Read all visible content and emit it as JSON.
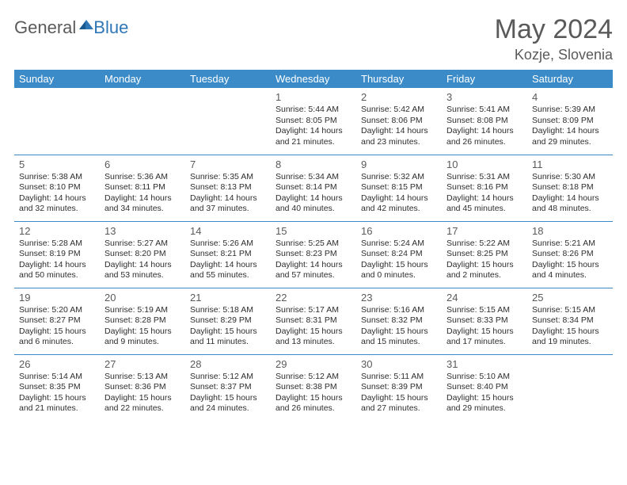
{
  "logo": {
    "part1": "General",
    "part2": "Blue"
  },
  "title": "May 2024",
  "location": "Kozje, Slovenia",
  "colors": {
    "header_bg": "#3b8bc9",
    "header_text": "#ffffff",
    "rule": "#3b8bc9",
    "daynum": "#5a5a5a",
    "body_text": "#2d2d2d",
    "title_text": "#5a5a5a",
    "logo_gray": "#5a5a5a",
    "logo_blue": "#2f77b5",
    "background": "#ffffff"
  },
  "day_labels": [
    "Sunday",
    "Monday",
    "Tuesday",
    "Wednesday",
    "Thursday",
    "Friday",
    "Saturday"
  ],
  "weeks": [
    [
      null,
      null,
      null,
      {
        "d": "1",
        "sr": "Sunrise: 5:44 AM",
        "ss": "Sunset: 8:05 PM",
        "dl1": "Daylight: 14 hours",
        "dl2": "and 21 minutes."
      },
      {
        "d": "2",
        "sr": "Sunrise: 5:42 AM",
        "ss": "Sunset: 8:06 PM",
        "dl1": "Daylight: 14 hours",
        "dl2": "and 23 minutes."
      },
      {
        "d": "3",
        "sr": "Sunrise: 5:41 AM",
        "ss": "Sunset: 8:08 PM",
        "dl1": "Daylight: 14 hours",
        "dl2": "and 26 minutes."
      },
      {
        "d": "4",
        "sr": "Sunrise: 5:39 AM",
        "ss": "Sunset: 8:09 PM",
        "dl1": "Daylight: 14 hours",
        "dl2": "and 29 minutes."
      }
    ],
    [
      {
        "d": "5",
        "sr": "Sunrise: 5:38 AM",
        "ss": "Sunset: 8:10 PM",
        "dl1": "Daylight: 14 hours",
        "dl2": "and 32 minutes."
      },
      {
        "d": "6",
        "sr": "Sunrise: 5:36 AM",
        "ss": "Sunset: 8:11 PM",
        "dl1": "Daylight: 14 hours",
        "dl2": "and 34 minutes."
      },
      {
        "d": "7",
        "sr": "Sunrise: 5:35 AM",
        "ss": "Sunset: 8:13 PM",
        "dl1": "Daylight: 14 hours",
        "dl2": "and 37 minutes."
      },
      {
        "d": "8",
        "sr": "Sunrise: 5:34 AM",
        "ss": "Sunset: 8:14 PM",
        "dl1": "Daylight: 14 hours",
        "dl2": "and 40 minutes."
      },
      {
        "d": "9",
        "sr": "Sunrise: 5:32 AM",
        "ss": "Sunset: 8:15 PM",
        "dl1": "Daylight: 14 hours",
        "dl2": "and 42 minutes."
      },
      {
        "d": "10",
        "sr": "Sunrise: 5:31 AM",
        "ss": "Sunset: 8:16 PM",
        "dl1": "Daylight: 14 hours",
        "dl2": "and 45 minutes."
      },
      {
        "d": "11",
        "sr": "Sunrise: 5:30 AM",
        "ss": "Sunset: 8:18 PM",
        "dl1": "Daylight: 14 hours",
        "dl2": "and 48 minutes."
      }
    ],
    [
      {
        "d": "12",
        "sr": "Sunrise: 5:28 AM",
        "ss": "Sunset: 8:19 PM",
        "dl1": "Daylight: 14 hours",
        "dl2": "and 50 minutes."
      },
      {
        "d": "13",
        "sr": "Sunrise: 5:27 AM",
        "ss": "Sunset: 8:20 PM",
        "dl1": "Daylight: 14 hours",
        "dl2": "and 53 minutes."
      },
      {
        "d": "14",
        "sr": "Sunrise: 5:26 AM",
        "ss": "Sunset: 8:21 PM",
        "dl1": "Daylight: 14 hours",
        "dl2": "and 55 minutes."
      },
      {
        "d": "15",
        "sr": "Sunrise: 5:25 AM",
        "ss": "Sunset: 8:23 PM",
        "dl1": "Daylight: 14 hours",
        "dl2": "and 57 minutes."
      },
      {
        "d": "16",
        "sr": "Sunrise: 5:24 AM",
        "ss": "Sunset: 8:24 PM",
        "dl1": "Daylight: 15 hours",
        "dl2": "and 0 minutes."
      },
      {
        "d": "17",
        "sr": "Sunrise: 5:22 AM",
        "ss": "Sunset: 8:25 PM",
        "dl1": "Daylight: 15 hours",
        "dl2": "and 2 minutes."
      },
      {
        "d": "18",
        "sr": "Sunrise: 5:21 AM",
        "ss": "Sunset: 8:26 PM",
        "dl1": "Daylight: 15 hours",
        "dl2": "and 4 minutes."
      }
    ],
    [
      {
        "d": "19",
        "sr": "Sunrise: 5:20 AM",
        "ss": "Sunset: 8:27 PM",
        "dl1": "Daylight: 15 hours",
        "dl2": "and 6 minutes."
      },
      {
        "d": "20",
        "sr": "Sunrise: 5:19 AM",
        "ss": "Sunset: 8:28 PM",
        "dl1": "Daylight: 15 hours",
        "dl2": "and 9 minutes."
      },
      {
        "d": "21",
        "sr": "Sunrise: 5:18 AM",
        "ss": "Sunset: 8:29 PM",
        "dl1": "Daylight: 15 hours",
        "dl2": "and 11 minutes."
      },
      {
        "d": "22",
        "sr": "Sunrise: 5:17 AM",
        "ss": "Sunset: 8:31 PM",
        "dl1": "Daylight: 15 hours",
        "dl2": "and 13 minutes."
      },
      {
        "d": "23",
        "sr": "Sunrise: 5:16 AM",
        "ss": "Sunset: 8:32 PM",
        "dl1": "Daylight: 15 hours",
        "dl2": "and 15 minutes."
      },
      {
        "d": "24",
        "sr": "Sunrise: 5:15 AM",
        "ss": "Sunset: 8:33 PM",
        "dl1": "Daylight: 15 hours",
        "dl2": "and 17 minutes."
      },
      {
        "d": "25",
        "sr": "Sunrise: 5:15 AM",
        "ss": "Sunset: 8:34 PM",
        "dl1": "Daylight: 15 hours",
        "dl2": "and 19 minutes."
      }
    ],
    [
      {
        "d": "26",
        "sr": "Sunrise: 5:14 AM",
        "ss": "Sunset: 8:35 PM",
        "dl1": "Daylight: 15 hours",
        "dl2": "and 21 minutes."
      },
      {
        "d": "27",
        "sr": "Sunrise: 5:13 AM",
        "ss": "Sunset: 8:36 PM",
        "dl1": "Daylight: 15 hours",
        "dl2": "and 22 minutes."
      },
      {
        "d": "28",
        "sr": "Sunrise: 5:12 AM",
        "ss": "Sunset: 8:37 PM",
        "dl1": "Daylight: 15 hours",
        "dl2": "and 24 minutes."
      },
      {
        "d": "29",
        "sr": "Sunrise: 5:12 AM",
        "ss": "Sunset: 8:38 PM",
        "dl1": "Daylight: 15 hours",
        "dl2": "and 26 minutes."
      },
      {
        "d": "30",
        "sr": "Sunrise: 5:11 AM",
        "ss": "Sunset: 8:39 PM",
        "dl1": "Daylight: 15 hours",
        "dl2": "and 27 minutes."
      },
      {
        "d": "31",
        "sr": "Sunrise: 5:10 AM",
        "ss": "Sunset: 8:40 PM",
        "dl1": "Daylight: 15 hours",
        "dl2": "and 29 minutes."
      },
      null
    ]
  ]
}
